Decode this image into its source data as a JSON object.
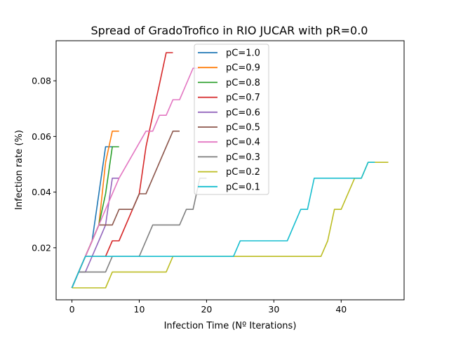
{
  "chart_data": {
    "type": "line",
    "title": "Spread of GradoTrofico in RIO JUCAR with pR=0.0",
    "xlabel": "Infection Time (Nº Iterations)",
    "ylabel": "Infection rate (%)",
    "xlim": [
      -2.35,
      49.35
    ],
    "ylim": [
      0.0013,
      0.0944
    ],
    "xticks": [
      0,
      10,
      20,
      30,
      40
    ],
    "yticks": [
      0.02,
      0.04,
      0.06,
      0.08
    ],
    "ytick_labels": [
      "0.02",
      "0.04",
      "0.06",
      "0.08"
    ],
    "legend_position": "upper center",
    "series": [
      {
        "name": "pC=1.0",
        "color": "#1f77b4",
        "points": [
          [
            0,
            0.0056
          ],
          [
            1,
            0.0113
          ],
          [
            2,
            0.0169
          ],
          [
            3,
            0.0225
          ],
          [
            4,
            0.0394
          ],
          [
            5,
            0.0563
          ],
          [
            6,
            0.0563
          ]
        ]
      },
      {
        "name": "pC=0.9",
        "color": "#ff7f0e",
        "points": [
          [
            0,
            0.0056
          ],
          [
            1,
            0.0113
          ],
          [
            2,
            0.0169
          ],
          [
            3,
            0.0225
          ],
          [
            4,
            0.0282
          ],
          [
            5,
            0.0507
          ],
          [
            6,
            0.0619
          ],
          [
            7,
            0.0619
          ]
        ]
      },
      {
        "name": "pC=0.8",
        "color": "#2ca02c",
        "points": [
          [
            0,
            0.0056
          ],
          [
            1,
            0.0113
          ],
          [
            2,
            0.0169
          ],
          [
            3,
            0.0225
          ],
          [
            4,
            0.0282
          ],
          [
            5,
            0.0394
          ],
          [
            6,
            0.0563
          ],
          [
            7,
            0.0563
          ]
        ]
      },
      {
        "name": "pC=0.7",
        "color": "#d62728",
        "points": [
          [
            0,
            0.0056
          ],
          [
            1,
            0.0113
          ],
          [
            2,
            0.0169
          ],
          [
            5,
            0.0169
          ],
          [
            6,
            0.0225
          ],
          [
            7,
            0.0225
          ],
          [
            9,
            0.0338
          ],
          [
            10,
            0.0394
          ],
          [
            11,
            0.0563
          ],
          [
            12,
            0.0676
          ],
          [
            13,
            0.0788
          ],
          [
            14,
            0.0901
          ],
          [
            15,
            0.0901
          ]
        ]
      },
      {
        "name": "pC=0.6",
        "color": "#9467bd",
        "points": [
          [
            0,
            0.0056
          ],
          [
            1,
            0.0113
          ],
          [
            2,
            0.0113
          ],
          [
            3,
            0.0169
          ],
          [
            4,
            0.0225
          ],
          [
            5,
            0.0282
          ],
          [
            6,
            0.045
          ],
          [
            7,
            0.045
          ]
        ]
      },
      {
        "name": "pC=0.5",
        "color": "#8c564b",
        "points": [
          [
            0,
            0.0056
          ],
          [
            1,
            0.0113
          ],
          [
            2,
            0.0169
          ],
          [
            3,
            0.0225
          ],
          [
            4,
            0.0282
          ],
          [
            6,
            0.0282
          ],
          [
            7,
            0.0338
          ],
          [
            9,
            0.0338
          ],
          [
            10,
            0.0394
          ],
          [
            11,
            0.0394
          ],
          [
            14,
            0.0563
          ],
          [
            15,
            0.0619
          ],
          [
            16,
            0.0619
          ]
        ]
      },
      {
        "name": "pC=0.4",
        "color": "#e377c2",
        "points": [
          [
            0,
            0.0056
          ],
          [
            1,
            0.0113
          ],
          [
            2,
            0.0169
          ],
          [
            3,
            0.0225
          ],
          [
            4,
            0.0282
          ],
          [
            5,
            0.0338
          ],
          [
            6,
            0.0394
          ],
          [
            7,
            0.045
          ],
          [
            11,
            0.0619
          ],
          [
            12,
            0.0619
          ],
          [
            13,
            0.0676
          ],
          [
            14,
            0.0676
          ],
          [
            15,
            0.0732
          ],
          [
            16,
            0.0732
          ],
          [
            18,
            0.0845
          ],
          [
            19,
            0.0845
          ]
        ]
      },
      {
        "name": "pC=0.3",
        "color": "#7f7f7f",
        "points": [
          [
            0,
            0.0056
          ],
          [
            1,
            0.0113
          ],
          [
            5,
            0.0113
          ],
          [
            6,
            0.0169
          ],
          [
            10,
            0.0169
          ],
          [
            12,
            0.0282
          ],
          [
            16,
            0.0282
          ],
          [
            17,
            0.0338
          ],
          [
            18,
            0.0338
          ],
          [
            19,
            0.045
          ],
          [
            20,
            0.045
          ]
        ]
      },
      {
        "name": "pC=0.2",
        "color": "#bcbd22",
        "points": [
          [
            0,
            0.0056
          ],
          [
            5,
            0.0056
          ],
          [
            6,
            0.0113
          ],
          [
            14,
            0.0113
          ],
          [
            15,
            0.0169
          ],
          [
            37,
            0.0169
          ],
          [
            38,
            0.0225
          ],
          [
            39,
            0.0338
          ],
          [
            40,
            0.0338
          ],
          [
            42,
            0.045
          ],
          [
            43,
            0.045
          ],
          [
            44,
            0.0507
          ],
          [
            47,
            0.0507
          ]
        ]
      },
      {
        "name": "pC=0.1",
        "color": "#17becf",
        "points": [
          [
            0,
            0.0056
          ],
          [
            1,
            0.0113
          ],
          [
            2,
            0.0169
          ],
          [
            24,
            0.0169
          ],
          [
            25,
            0.0225
          ],
          [
            32,
            0.0225
          ],
          [
            34,
            0.0338
          ],
          [
            35,
            0.0338
          ],
          [
            36,
            0.045
          ],
          [
            43,
            0.045
          ],
          [
            44,
            0.0507
          ],
          [
            45,
            0.0507
          ]
        ]
      }
    ]
  }
}
